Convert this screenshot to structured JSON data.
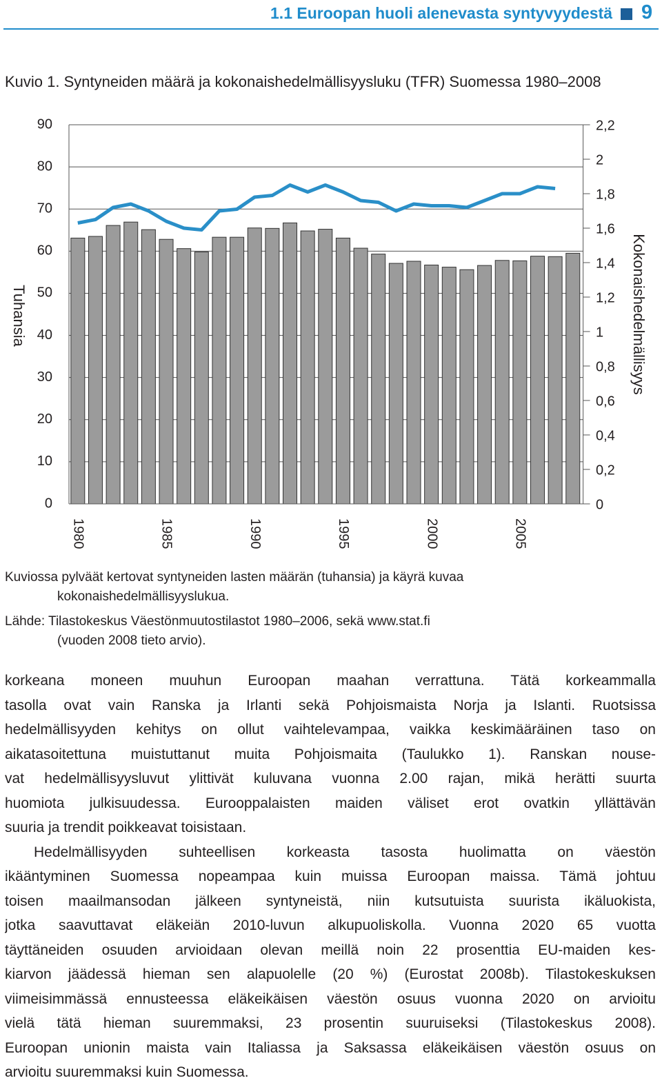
{
  "header": {
    "title": "1.1 Euroopan huoli alenevasta syntyvyydestä",
    "page_number": "9"
  },
  "chart_data": {
    "type": "bar-line",
    "title": "Kuvio 1. Syntyneiden määrä ja kokonaishedelmällisyysluku (TFR) Suomessa 1980–2008",
    "y_label": "Tuhansia",
    "y2_label": "Kokonaishedelmällisyys",
    "categories": [
      "1980",
      null,
      null,
      null,
      null,
      "1985",
      null,
      null,
      null,
      null,
      "1990",
      null,
      null,
      null,
      null,
      "1995",
      null,
      null,
      null,
      null,
      "2000",
      null,
      null,
      null,
      null,
      "2005",
      null,
      null,
      null
    ],
    "series": [
      {
        "type": "bar",
        "color": "#9b9b9b",
        "values": [
          63.1,
          63.5,
          66.1,
          66.9,
          65.1,
          62.8,
          60.6,
          59.8,
          63.3,
          63.3,
          65.5,
          65.4,
          66.7,
          64.8,
          65.2,
          63.1,
          60.7,
          59.3,
          57.1,
          57.6,
          56.7,
          56.2,
          55.6,
          56.6,
          57.8,
          57.7,
          58.8,
          58.7,
          59.5
        ]
      },
      {
        "type": "line",
        "color": "#2a8fc8",
        "axis": "y2",
        "values": [
          1.63,
          1.65,
          1.72,
          1.74,
          1.7,
          1.64,
          1.6,
          1.59,
          1.7,
          1.71,
          1.78,
          1.79,
          1.85,
          1.81,
          1.85,
          1.81,
          1.76,
          1.75,
          1.7,
          1.74,
          1.73,
          1.73,
          1.72,
          1.76,
          1.8,
          1.8,
          1.84,
          1.83,
          null
        ]
      }
    ],
    "ylim": [
      0,
      90
    ],
    "yticks": [
      0,
      10,
      20,
      30,
      40,
      50,
      60,
      70,
      80,
      90
    ],
    "y2lim": [
      0,
      2.2
    ],
    "y2ticks": [
      0,
      {
        "value": 0.2,
        "label": "0,2"
      },
      {
        "value": 0.4,
        "label": "0,4"
      },
      {
        "value": 0.6,
        "label": "0,6"
      },
      {
        "value": 0.8,
        "label": "0,8"
      },
      1,
      {
        "value": 1.2,
        "label": "1,2"
      },
      {
        "value": 1.4,
        "label": "1,4"
      },
      {
        "value": 1.6,
        "label": "1,6"
      },
      {
        "value": 1.8,
        "label": "1,8"
      },
      2,
      {
        "value": 2.2,
        "label": "2,2"
      }
    ],
    "grid": true
  },
  "caption": {
    "lines": [
      "Kuviossa pylväät kertovat syntyneiden lasten määrän (tuhansia) ja käyrä kuvaa",
      "kokonaishedelmällisyyslukua."
    ]
  },
  "source": {
    "lines": [
      "Lähde: Tilastokeskus Väestönmuutostilastot 1980–2006, sekä www.stat.fi",
      "(vuoden 2008 tieto arvio)."
    ]
  },
  "body": {
    "paragraphs": [
      {
        "lines": [
          "korkeana moneen muuhun Euroopan maahan verrattuna. Tätä korkeammalla",
          "tasolla ovat vain Ranska ja Irlanti sekä Pohjoismaista Norja ja Islanti. Ruotsissa",
          "hedelmällisyyden kehitys on ollut vaihtelevampaa, vaikka keskimääräinen taso on",
          "aikatasoitettuna muistuttanut muita Pohjoismaita (Taulukko 1). Ranskan nouse-",
          "vat hedelmällisyysluvut ylittivät kuluvana vuonna 2.00 rajan, mikä herätti suurta",
          "huomiota julkisuudessa. Eurooppalaisten maiden väliset erot ovatkin yllättävän",
          "suuria ja trendit poikkeavat toisistaan."
        ]
      },
      {
        "lines": [
          "Hedelmällisyyden suhteellisen korkeasta tasosta huolimatta on väestön",
          "ikääntyminen Suomessa nopeampaa kuin muissa Euroopan maissa. Tämä johtuu",
          "toisen maailmansodan jälkeen syntyneistä, niin kutsutuista suurista ikäluokista,",
          "jotka saavuttavat eläkeiän 2010-luvun alkupuoliskolla. Vuonna 2020 65 vuotta",
          "täyttäneiden osuuden arvioidaan olevan meillä noin 22 prosenttia EU-maiden kes-",
          "kiarvon jäädessä hieman sen alapuolelle (20 %) (Eurostat 2008b). Tilastokeskuksen",
          "viimeisimmässä ennusteessa eläkeikäisen väestön osuus vuonna 2020 on arvioitu",
          "vielä tätä hieman suuremmaksi, 23 prosentin suuruiseksi (Tilastokeskus 2008).",
          "Euroopan unionin maista vain Italiassa ja Saksassa eläkeikäisen väestön osuus on",
          "arvioitu suuremmaksi kuin Suomessa."
        ]
      }
    ]
  }
}
